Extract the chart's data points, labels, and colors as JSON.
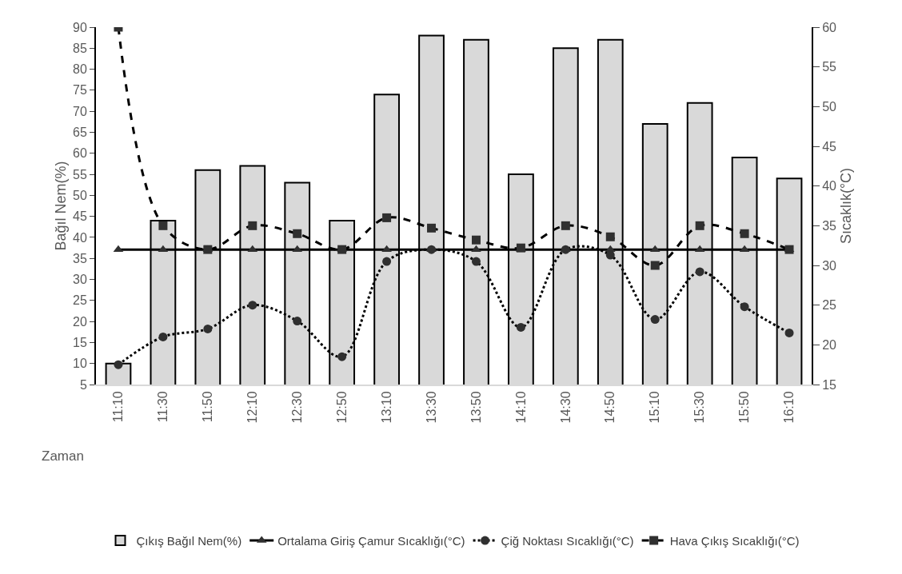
{
  "chart_data": {
    "type": "bar",
    "xlabel": "Zaman",
    "ylabel": "Bağıl Nem(%)",
    "y2label": "Sıcaklık(°C)",
    "categories": [
      "11:10",
      "11:30",
      "11:50",
      "12:10",
      "12:30",
      "12:50",
      "13:10",
      "13:30",
      "13:50",
      "14:10",
      "14:30",
      "14:50",
      "15:10",
      "15:30",
      "15:50",
      "16:10"
    ],
    "series": [
      {
        "name": "Çıkış Bağıl Nem(%)",
        "color": "#d9d9d9",
        "values": [
          10,
          44,
          56,
          57,
          53,
          44,
          74,
          88,
          87,
          55,
          85,
          87,
          67,
          72,
          59,
          54
        ]
      },
      {
        "name": "Ortalama Giriş Çamur Sıcaklığı(°C)",
        "type": "line",
        "axis": "y2",
        "color": "#000000",
        "marker": "triangle",
        "line_style": "solid",
        "values": [
          32,
          32,
          32,
          32,
          32,
          32,
          32,
          32,
          32,
          32,
          32,
          32,
          32,
          32,
          32,
          32
        ]
      },
      {
        "name": "Çiğ Noktası Sıcaklığı(°C)",
        "type": "line",
        "axis": "y2",
        "color": "#000000",
        "marker": "circle",
        "line_style": "dotted",
        "values": [
          17.5,
          21,
          22,
          25,
          23,
          18.5,
          30.5,
          32,
          30.5,
          22.2,
          32,
          31.3,
          23.2,
          29.2,
          24.8,
          21.5
        ]
      },
      {
        "name": "Hava Çıkış Sıcaklığı(°C)",
        "type": "line",
        "axis": "y2",
        "color": "#000000",
        "marker": "square",
        "line_style": "dashed",
        "values": [
          60,
          35,
          32,
          35,
          34,
          32,
          36,
          34.7,
          33.2,
          32.2,
          35,
          33.6,
          30,
          35,
          34,
          32
        ]
      }
    ],
    "ylim": [
      5,
      90
    ],
    "yticks": [
      5,
      10,
      15,
      20,
      25,
      30,
      35,
      40,
      45,
      50,
      55,
      60,
      65,
      70,
      75,
      80,
      85,
      90
    ],
    "y2lim": [
      15,
      60
    ],
    "y2ticks": [
      15,
      20,
      25,
      30,
      35,
      40,
      45,
      50,
      55,
      60
    ],
    "legend": "bottom"
  }
}
